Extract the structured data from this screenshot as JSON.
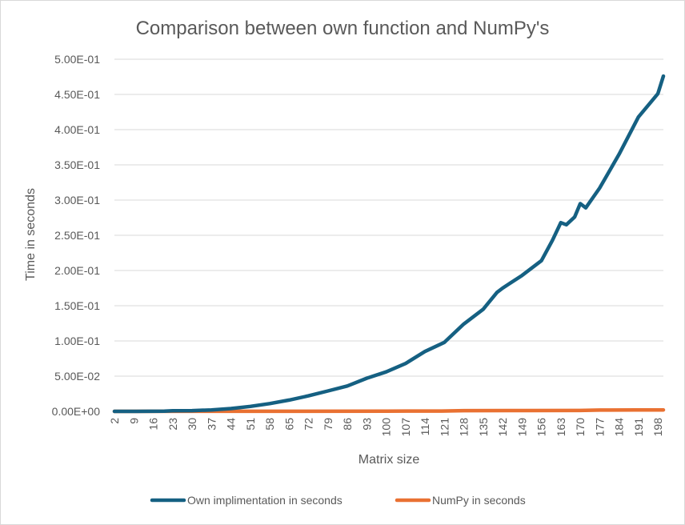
{
  "chart_data": {
    "type": "line",
    "title": "Comparison between own function and NumPy's",
    "xlabel": "Matrix size",
    "ylabel": "Time in seconds",
    "xlim": [
      2,
      200
    ],
    "ylim": [
      0,
      0.5
    ],
    "x_tick_labels": [
      "2",
      "9",
      "16",
      "23",
      "30",
      "37",
      "44",
      "51",
      "58",
      "65",
      "72",
      "79",
      "86",
      "93",
      "100",
      "107",
      "114",
      "121",
      "128",
      "135",
      "142",
      "149",
      "156",
      "163",
      "170",
      "177",
      "184",
      "191",
      "198"
    ],
    "y_tick_labels": [
      "0.00E+00",
      "5.00E-02",
      "1.00E-01",
      "1.50E-01",
      "2.00E-01",
      "2.50E-01",
      "3.00E-01",
      "3.50E-01",
      "4.00E-01",
      "4.50E-01",
      "5.00E-01"
    ],
    "y_ticks": [
      0,
      0.05,
      0.1,
      0.15,
      0.2,
      0.25,
      0.3,
      0.35,
      0.4,
      0.45,
      0.5
    ],
    "grid": "horizontal",
    "legend_position": "bottom",
    "series": [
      {
        "name": "Own implimentation in seconds",
        "color": "#156082",
        "x": [
          2,
          10,
          20,
          23,
          30,
          37,
          44,
          51,
          58,
          65,
          72,
          79,
          86,
          93,
          100,
          107,
          114,
          121,
          128,
          135,
          140,
          142,
          149,
          156,
          160,
          163,
          165,
          168,
          170,
          172,
          177,
          184,
          191,
          198,
          200
        ],
        "values": [
          0,
          0,
          0.0003,
          0.0008,
          0.001,
          0.002,
          0.004,
          0.007,
          0.011,
          0.016,
          0.022,
          0.029,
          0.036,
          0.047,
          0.056,
          0.068,
          0.085,
          0.098,
          0.124,
          0.145,
          0.169,
          0.175,
          0.193,
          0.214,
          0.243,
          0.268,
          0.265,
          0.276,
          0.295,
          0.289,
          0.317,
          0.365,
          0.418,
          0.451,
          0.476
        ]
      },
      {
        "name": "NumPy in seconds",
        "color": "#E97132",
        "x": [
          2,
          50,
          100,
          120,
          128,
          150,
          170,
          177,
          190,
          200
        ],
        "values": [
          0,
          0.0001,
          0.0003,
          0.0005,
          0.001,
          0.0011,
          0.0012,
          0.0018,
          0.002,
          0.0021
        ]
      }
    ]
  }
}
